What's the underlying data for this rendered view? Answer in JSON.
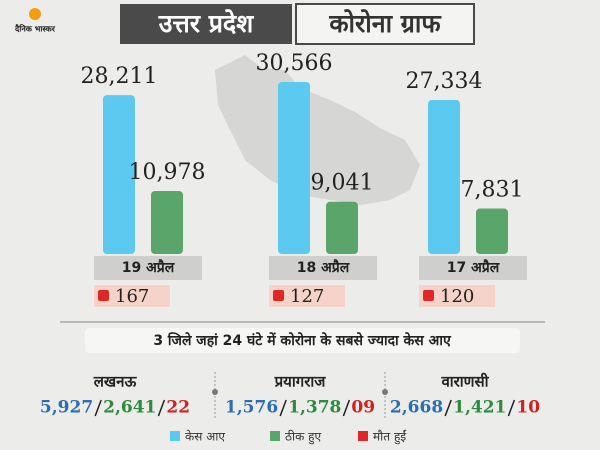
{
  "header": {
    "logo": "दैनिक भास्कर",
    "title": "उत्तर प्रदेश",
    "subtitle": "कोरोना ग्राफ"
  },
  "chart_data": {
    "type": "bar",
    "categories": [
      "19 अप्रैल",
      "18 अप्रैल",
      "17 अप्रैल"
    ],
    "series": [
      {
        "name": "केस आए",
        "color": "#5ccaf0",
        "values": [
          28211,
          30566,
          27334
        ],
        "value_labels": [
          "28,211",
          "30,566",
          "27,334"
        ]
      },
      {
        "name": "ठीक हुए",
        "color": "#5aa66a",
        "values": [
          10978,
          9041,
          7831
        ],
        "value_labels": [
          "10,978",
          "9,041",
          "7,831"
        ]
      },
      {
        "name": "मौत हुईं",
        "color": "#e02626",
        "values": [
          167,
          127,
          120
        ]
      }
    ]
  },
  "districts": {
    "title": "3 जिले जहां 24 घंटे में कोरोना के सबसे ज्यादा केस आए",
    "items": [
      {
        "name": "लखनऊ",
        "values": [
          5927,
          2641,
          22
        ],
        "value_labels": [
          "5,927",
          "2,641",
          "22"
        ]
      },
      {
        "name": "प्रयागराज",
        "values": [
          1576,
          1378,
          9
        ],
        "value_labels": [
          "1,576",
          "1,378",
          "09"
        ]
      },
      {
        "name": "वाराणसी",
        "values": [
          2668,
          1421,
          10
        ],
        "value_labels": [
          "2,668",
          "1,421",
          "10"
        ]
      }
    ]
  }
}
